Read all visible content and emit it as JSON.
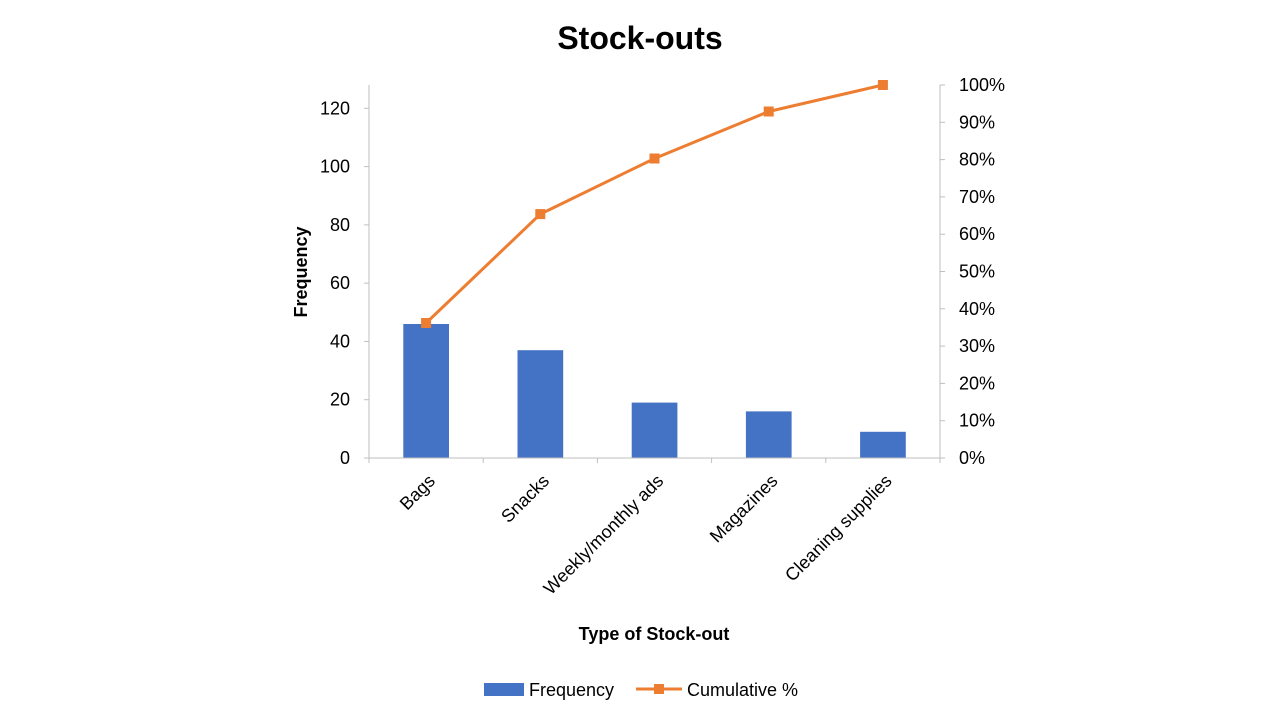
{
  "chart_data": {
    "type": "bar",
    "title": "Stock-outs",
    "xlabel": "Type of Stock-out",
    "ylabel": "Frequency",
    "categories": [
      "Bags",
      "Snacks",
      "Weekly/monthly ads",
      "Magazines",
      "Cleaning supplies"
    ],
    "series": [
      {
        "name": "Frequency",
        "type": "bar",
        "axis": "left",
        "color": "#4472C4",
        "values": [
          46,
          37,
          19,
          16,
          9
        ]
      },
      {
        "name": "Cumulative %",
        "type": "line",
        "axis": "right",
        "color": "#ED7D31",
        "marker": "square",
        "values": [
          36.2,
          65.4,
          80.3,
          92.9,
          100
        ]
      }
    ],
    "ylim": [
      0,
      128
    ],
    "yticks": [
      0,
      20,
      40,
      60,
      80,
      100,
      120
    ],
    "y2lim": [
      0,
      100
    ],
    "y2ticks": [
      "0%",
      "10%",
      "20%",
      "30%",
      "40%",
      "50%",
      "60%",
      "70%",
      "80%",
      "90%",
      "100%"
    ],
    "grid": false,
    "legend": "bottom"
  }
}
